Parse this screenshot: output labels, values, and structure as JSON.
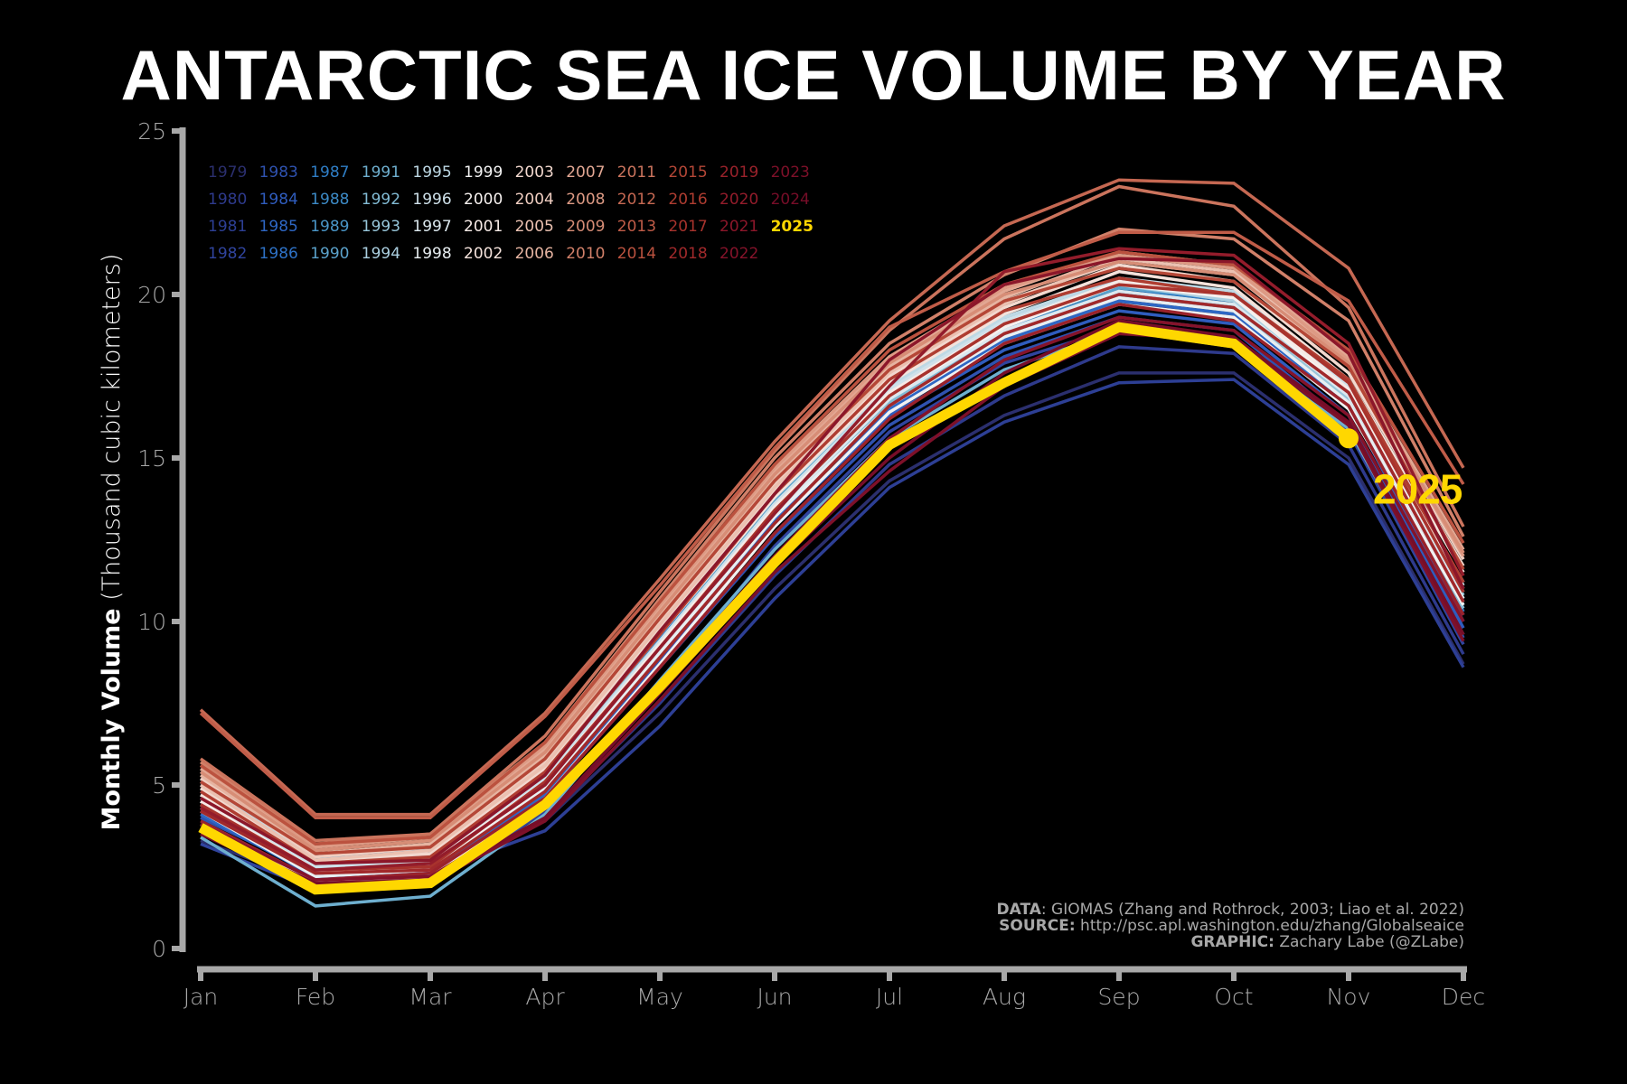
{
  "title": "ANTARCTIC SEA ICE VOLUME BY YEAR",
  "chart_data": {
    "type": "line",
    "title": "ANTARCTIC SEA ICE VOLUME BY YEAR",
    "xlabel": "",
    "ylabel_bold": "Monthly Volume",
    "ylabel_rest": " (Thousand cubic kilometers)",
    "x": [
      "Jan",
      "Feb",
      "Mar",
      "Apr",
      "May",
      "Jun",
      "Jul",
      "Aug",
      "Sep",
      "Oct",
      "Nov",
      "Dec"
    ],
    "ylim": [
      0,
      25
    ],
    "yticks": [
      0,
      5,
      10,
      15,
      20,
      25
    ],
    "grid": false,
    "legend_placement": "top-left",
    "highlight": {
      "name": "2025",
      "color": "#FFD700",
      "label": "2025"
    },
    "series": [
      {
        "name": "1979",
        "color": "#2B2F6E",
        "values": [
          3.3,
          2.0,
          2.1,
          3.9,
          7.2,
          11.0,
          14.3,
          16.3,
          17.6,
          17.6,
          15.0,
          8.7
        ]
      },
      {
        "name": "1980",
        "color": "#2E3A8C",
        "values": [
          3.5,
          2.1,
          2.2,
          4.0,
          7.5,
          11.4,
          14.8,
          16.9,
          18.4,
          18.2,
          15.4,
          9.0
        ]
      },
      {
        "name": "1981",
        "color": "#2D3F95",
        "values": [
          3.6,
          2.2,
          2.3,
          3.6,
          6.8,
          10.7,
          14.1,
          16.1,
          17.3,
          17.4,
          14.8,
          8.6
        ]
      },
      {
        "name": "1982",
        "color": "#30449E",
        "values": [
          3.2,
          1.8,
          1.9,
          4.2,
          8.0,
          12.3,
          15.8,
          17.9,
          19.0,
          18.6,
          15.8,
          9.3
        ]
      },
      {
        "name": "1983",
        "color": "#2F52B0",
        "values": [
          4.0,
          2.3,
          2.5,
          4.6,
          8.6,
          12.6,
          16.0,
          18.1,
          19.3,
          18.9,
          16.0,
          9.5
        ]
      },
      {
        "name": "1984",
        "color": "#2F5CBD",
        "values": [
          4.3,
          2.4,
          2.6,
          4.8,
          8.8,
          12.9,
          16.3,
          18.3,
          19.5,
          19.1,
          16.3,
          9.8
        ]
      },
      {
        "name": "1985",
        "color": "#2E67C4",
        "values": [
          4.1,
          2.2,
          2.4,
          4.7,
          8.9,
          13.1,
          16.5,
          18.6,
          19.8,
          19.4,
          16.6,
          10.0
        ]
      },
      {
        "name": "1986",
        "color": "#2E72C7",
        "values": [
          4.6,
          2.5,
          2.7,
          5.0,
          9.2,
          13.4,
          16.8,
          18.9,
          20.0,
          19.6,
          16.8,
          10.2
        ]
      },
      {
        "name": "1987",
        "color": "#2F7EC6",
        "values": [
          5.0,
          2.7,
          2.8,
          5.2,
          9.5,
          13.8,
          17.2,
          19.2,
          20.2,
          19.8,
          16.9,
          10.3
        ]
      },
      {
        "name": "1988",
        "color": "#3C8AC6",
        "values": [
          4.8,
          2.6,
          2.7,
          5.1,
          9.3,
          13.6,
          17.0,
          19.0,
          20.1,
          19.7,
          17.0,
          10.5
        ]
      },
      {
        "name": "1989",
        "color": "#4A96C8",
        "values": [
          5.4,
          2.9,
          3.0,
          5.4,
          9.7,
          13.9,
          17.3,
          19.3,
          20.4,
          20.0,
          17.2,
          10.7
        ]
      },
      {
        "name": "1990",
        "color": "#5BA2CB",
        "values": [
          5.2,
          2.8,
          2.9,
          5.3,
          9.6,
          13.7,
          17.1,
          19.1,
          20.2,
          19.9,
          17.1,
          10.6
        ]
      },
      {
        "name": "1991",
        "color": "#6EAFCF",
        "values": [
          3.4,
          1.3,
          1.6,
          4.1,
          8.2,
          12.2,
          15.6,
          17.7,
          18.9,
          18.4,
          15.9,
          9.6
        ]
      },
      {
        "name": "1992",
        "color": "#82BBD4",
        "values": [
          4.5,
          2.4,
          2.6,
          5.0,
          9.1,
          13.3,
          16.7,
          18.8,
          19.9,
          19.5,
          16.7,
          10.4
        ]
      },
      {
        "name": "1993",
        "color": "#97C6DA",
        "values": [
          4.7,
          2.5,
          2.6,
          5.1,
          9.2,
          13.4,
          16.9,
          18.9,
          20.0,
          19.6,
          16.8,
          10.8
        ]
      },
      {
        "name": "1994",
        "color": "#ABCFE0",
        "values": [
          4.9,
          2.6,
          2.8,
          5.3,
          9.4,
          13.6,
          17.0,
          19.1,
          20.3,
          19.8,
          17.0,
          11.0
        ]
      },
      {
        "name": "1995",
        "color": "#BED9E5",
        "values": [
          5.1,
          2.7,
          2.9,
          5.4,
          9.6,
          13.8,
          17.2,
          19.3,
          20.5,
          20.1,
          17.3,
          11.2
        ]
      },
      {
        "name": "1996",
        "color": "#CFE1EA",
        "values": [
          4.6,
          2.5,
          2.7,
          5.2,
          9.4,
          13.6,
          17.1,
          19.2,
          20.4,
          19.9,
          17.2,
          11.1
        ]
      },
      {
        "name": "1997",
        "color": "#DCE8EE",
        "values": [
          4.4,
          2.3,
          2.5,
          5.0,
          9.1,
          13.3,
          16.8,
          18.9,
          20.1,
          19.7,
          16.9,
          10.9
        ]
      },
      {
        "name": "1998",
        "color": "#E8EEF1",
        "values": [
          4.2,
          2.2,
          2.4,
          4.9,
          9.0,
          13.2,
          16.6,
          18.7,
          19.9,
          19.5,
          16.7,
          10.7
        ]
      },
      {
        "name": "1999",
        "color": "#F1F1F1",
        "values": [
          3.8,
          2.0,
          2.2,
          4.6,
          8.7,
          12.9,
          16.4,
          18.5,
          19.7,
          19.3,
          16.5,
          10.5
        ]
      },
      {
        "name": "2000",
        "color": "#F5F0EE",
        "values": [
          4.3,
          2.3,
          2.5,
          5.0,
          9.2,
          13.4,
          16.9,
          19.0,
          20.3,
          19.9,
          17.0,
          11.0
        ]
      },
      {
        "name": "2001",
        "color": "#F6EAE6",
        "values": [
          4.5,
          2.4,
          2.6,
          5.1,
          9.3,
          13.5,
          17.0,
          19.1,
          20.4,
          20.0,
          17.1,
          11.2
        ]
      },
      {
        "name": "2002",
        "color": "#F4E2DB",
        "values": [
          4.7,
          2.6,
          2.8,
          5.4,
          9.6,
          13.8,
          17.3,
          19.4,
          20.7,
          20.2,
          17.4,
          11.5
        ]
      },
      {
        "name": "2003",
        "color": "#F2D8CE",
        "values": [
          4.9,
          2.7,
          2.9,
          5.5,
          9.8,
          14.0,
          17.5,
          19.6,
          20.9,
          20.4,
          17.6,
          11.7
        ]
      },
      {
        "name": "2004",
        "color": "#EFCDC0",
        "values": [
          5.2,
          2.8,
          3.1,
          5.7,
          10.0,
          14.2,
          17.7,
          19.8,
          21.0,
          20.6,
          17.8,
          11.9
        ]
      },
      {
        "name": "2005",
        "color": "#EBC1B1",
        "values": [
          5.0,
          2.7,
          3.0,
          5.6,
          9.9,
          14.1,
          17.6,
          19.7,
          21.1,
          20.7,
          17.9,
          12.0
        ]
      },
      {
        "name": "2006",
        "color": "#E6B4A1",
        "values": [
          5.3,
          2.9,
          3.2,
          5.9,
          10.2,
          14.4,
          17.8,
          19.9,
          21.2,
          20.8,
          18.0,
          12.1
        ]
      },
      {
        "name": "2007",
        "color": "#E2A793",
        "values": [
          5.5,
          3.0,
          3.3,
          6.1,
          10.4,
          14.6,
          18.0,
          20.1,
          21.3,
          20.9,
          18.1,
          12.2
        ]
      },
      {
        "name": "2008",
        "color": "#DD9A84",
        "values": [
          5.6,
          3.1,
          3.4,
          6.2,
          10.5,
          14.7,
          18.1,
          20.2,
          21.2,
          20.8,
          18.0,
          12.0
        ]
      },
      {
        "name": "2009",
        "color": "#D78D76",
        "values": [
          5.4,
          3.0,
          3.3,
          6.0,
          10.3,
          14.5,
          17.9,
          20.0,
          21.0,
          20.6,
          17.9,
          12.1
        ]
      },
      {
        "name": "2010",
        "color": "#D18069",
        "values": [
          5.7,
          3.2,
          3.5,
          6.3,
          10.7,
          15.0,
          18.5,
          20.6,
          22.0,
          21.7,
          19.2,
          12.6
        ]
      },
      {
        "name": "2011",
        "color": "#CB745D",
        "values": [
          5.8,
          3.3,
          3.5,
          6.5,
          10.9,
          15.2,
          18.9,
          21.7,
          23.3,
          22.7,
          19.6,
          12.9
        ]
      },
      {
        "name": "2012",
        "color": "#C56852",
        "values": [
          7.3,
          4.1,
          4.1,
          7.2,
          11.3,
          15.5,
          19.2,
          22.1,
          23.5,
          23.4,
          20.8,
          14.7
        ]
      },
      {
        "name": "2013",
        "color": "#C05C48",
        "values": [
          7.2,
          4.0,
          4.0,
          7.1,
          11.1,
          15.3,
          19.0,
          20.7,
          21.9,
          21.9,
          19.8,
          14.2
        ]
      },
      {
        "name": "2014",
        "color": "#BB523F",
        "values": [
          5.6,
          3.2,
          3.4,
          6.3,
          10.6,
          14.8,
          18.3,
          20.3,
          21.3,
          20.9,
          18.3,
          12.4
        ]
      },
      {
        "name": "2015",
        "color": "#B54737",
        "values": [
          5.1,
          2.9,
          3.1,
          5.8,
          10.1,
          14.3,
          17.7,
          19.8,
          20.8,
          20.4,
          17.8,
          11.6
        ]
      },
      {
        "name": "2016",
        "color": "#AF3D31",
        "values": [
          4.8,
          2.6,
          2.8,
          5.4,
          9.6,
          13.9,
          17.4,
          19.5,
          20.5,
          20.0,
          17.4,
          11.2
        ]
      },
      {
        "name": "2017",
        "color": "#A8332D",
        "values": [
          4.4,
          2.4,
          2.5,
          5.1,
          9.2,
          13.4,
          16.9,
          19.1,
          20.3,
          20.0,
          17.3,
          10.9
        ]
      },
      {
        "name": "2018",
        "color": "#A1292B",
        "values": [
          4.2,
          2.3,
          2.4,
          4.8,
          8.9,
          13.0,
          16.6,
          18.8,
          20.0,
          19.6,
          17.0,
          10.6
        ]
      },
      {
        "name": "2019",
        "color": "#9A222B",
        "values": [
          3.9,
          2.1,
          2.3,
          4.6,
          8.6,
          12.7,
          16.2,
          18.5,
          19.7,
          19.2,
          16.6,
          10.2
        ]
      },
      {
        "name": "2020",
        "color": "#931C2B",
        "values": [
          4.3,
          2.4,
          2.6,
          5.0,
          9.2,
          13.3,
          17.2,
          20.7,
          21.4,
          21.2,
          18.5,
          11.4
        ]
      },
      {
        "name": "2021",
        "color": "#8C172A",
        "values": [
          4.6,
          2.6,
          2.7,
          5.3,
          9.7,
          13.9,
          18.0,
          20.3,
          21.1,
          21.0,
          18.2,
          11.0
        ]
      },
      {
        "name": "2022",
        "color": "#85132A",
        "values": [
          3.8,
          2.1,
          2.2,
          4.3,
          8.1,
          12.0,
          15.6,
          18.0,
          19.3,
          18.9,
          16.3,
          10.0
        ]
      },
      {
        "name": "2023",
        "color": "#7E1029",
        "values": [
          3.5,
          1.9,
          2.0,
          3.9,
          7.6,
          11.5,
          14.6,
          17.2,
          18.8,
          18.6,
          16.0,
          9.4
        ]
      },
      {
        "name": "2024",
        "color": "#770D28",
        "values": [
          3.6,
          2.0,
          2.1,
          4.0,
          7.8,
          11.7,
          15.0,
          17.6,
          19.2,
          18.7,
          16.1,
          9.6
        ]
      },
      {
        "name": "2025",
        "color": "#FFD700",
        "values": [
          3.7,
          1.8,
          2.0,
          4.4,
          8.0,
          11.8,
          15.4,
          17.3,
          19.0,
          18.5,
          15.6,
          null
        ]
      }
    ]
  },
  "legend_columns": [
    [
      "1979",
      "1980",
      "1981",
      "1982"
    ],
    [
      "1983",
      "1984",
      "1985",
      "1986"
    ],
    [
      "1987",
      "1988",
      "1989",
      "1990"
    ],
    [
      "1991",
      "1992",
      "1993",
      "1994"
    ],
    [
      "1995",
      "1996",
      "1997",
      "1998"
    ],
    [
      "1999",
      "2000",
      "2001",
      "2002"
    ],
    [
      "2003",
      "2004",
      "2005",
      "2006"
    ],
    [
      "2007",
      "2008",
      "2009",
      "2010"
    ],
    [
      "2011",
      "2012",
      "2013",
      "2014"
    ],
    [
      "2015",
      "2016",
      "2017",
      "2018"
    ],
    [
      "2019",
      "2020",
      "2021",
      "2022"
    ],
    [
      "2023",
      "2024",
      "2025"
    ]
  ],
  "credits": {
    "data_label": "DATA",
    "data_text": ": GIOMAS (Zhang and Rothrock, 2003; Liao et al. 2022)",
    "source_label": "SOURCE:",
    "source_text": " http://psc.apl.washington.edu/zhang/Globalseaice",
    "graphic_label": "GRAPHIC:",
    "graphic_text": " Zachary Labe (@ZLabe)"
  },
  "colors": {
    "background": "#000000",
    "axis": "#A8A8A8",
    "highlight": "#FFD700"
  }
}
